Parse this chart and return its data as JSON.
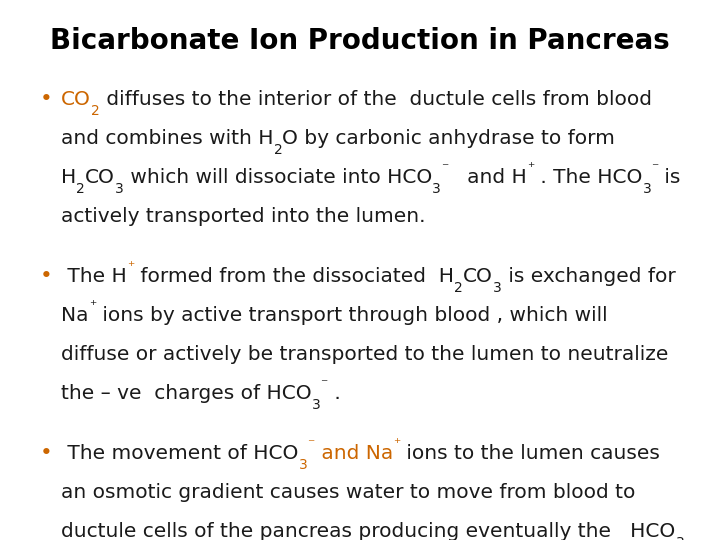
{
  "title": "Bicarbonate Ion Production in Pancreas",
  "bg_color": "#ffffff",
  "title_color": "#000000",
  "title_fontsize": 20,
  "body_fontsize": 14.5,
  "body_color": "#1a1a1a",
  "orange_color": "#cc6600",
  "font_family": "DejaVu Sans Condensed"
}
